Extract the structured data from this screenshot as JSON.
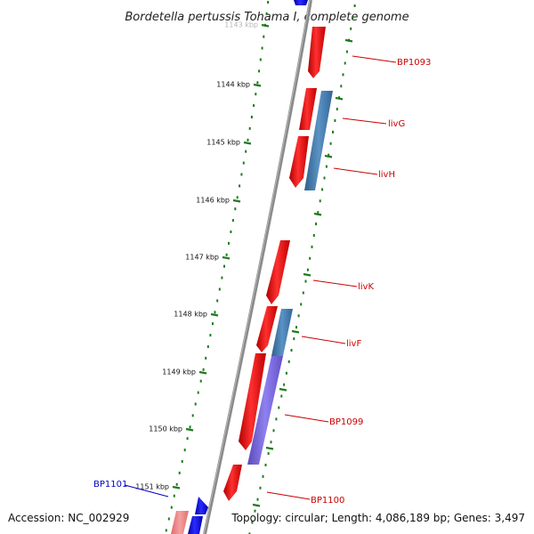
{
  "title": "Bordetella pertussis Tohama I, complete genome",
  "kbp_ticks": [
    {
      "label": "1143 kbp",
      "faded": true
    },
    {
      "label": "1144 kbp",
      "faded": false
    },
    {
      "label": "1145 kbp",
      "faded": false
    },
    {
      "label": "1146 kbp",
      "faded": false
    },
    {
      "label": "1147 kbp",
      "faded": false
    },
    {
      "label": "1148 kbp",
      "faded": false
    },
    {
      "label": "1149 kbp",
      "faded": false
    },
    {
      "label": "1150 kbp",
      "faded": false
    },
    {
      "label": "1151 kbp",
      "faded": false
    }
  ],
  "gene_labels": [
    {
      "name": "BP1093",
      "color": "#cc0000"
    },
    {
      "name": "livG",
      "color": "#cc0000"
    },
    {
      "name": "livH",
      "color": "#cc0000"
    },
    {
      "name": "livK",
      "color": "#cc0000"
    },
    {
      "name": "livF",
      "color": "#cc0000"
    },
    {
      "name": "BP1099",
      "color": "#cc0000"
    },
    {
      "name": "BP1100",
      "color": "#cc0000"
    },
    {
      "name": "BP1101",
      "color": "#0000cc"
    }
  ],
  "footer": {
    "accession": "Accession: NC_002929",
    "topology": "Topology: circular; Length: 4,086,189 bp; Genes: 3,497"
  },
  "colors": {
    "forward_cds": "#ff0000",
    "reverse_cds": "#0000ff",
    "feature_steelblue": "#4682b4",
    "feature_purple": "#7b68ee",
    "backbone": "#888888",
    "tick_green": "#1e7b1e"
  }
}
